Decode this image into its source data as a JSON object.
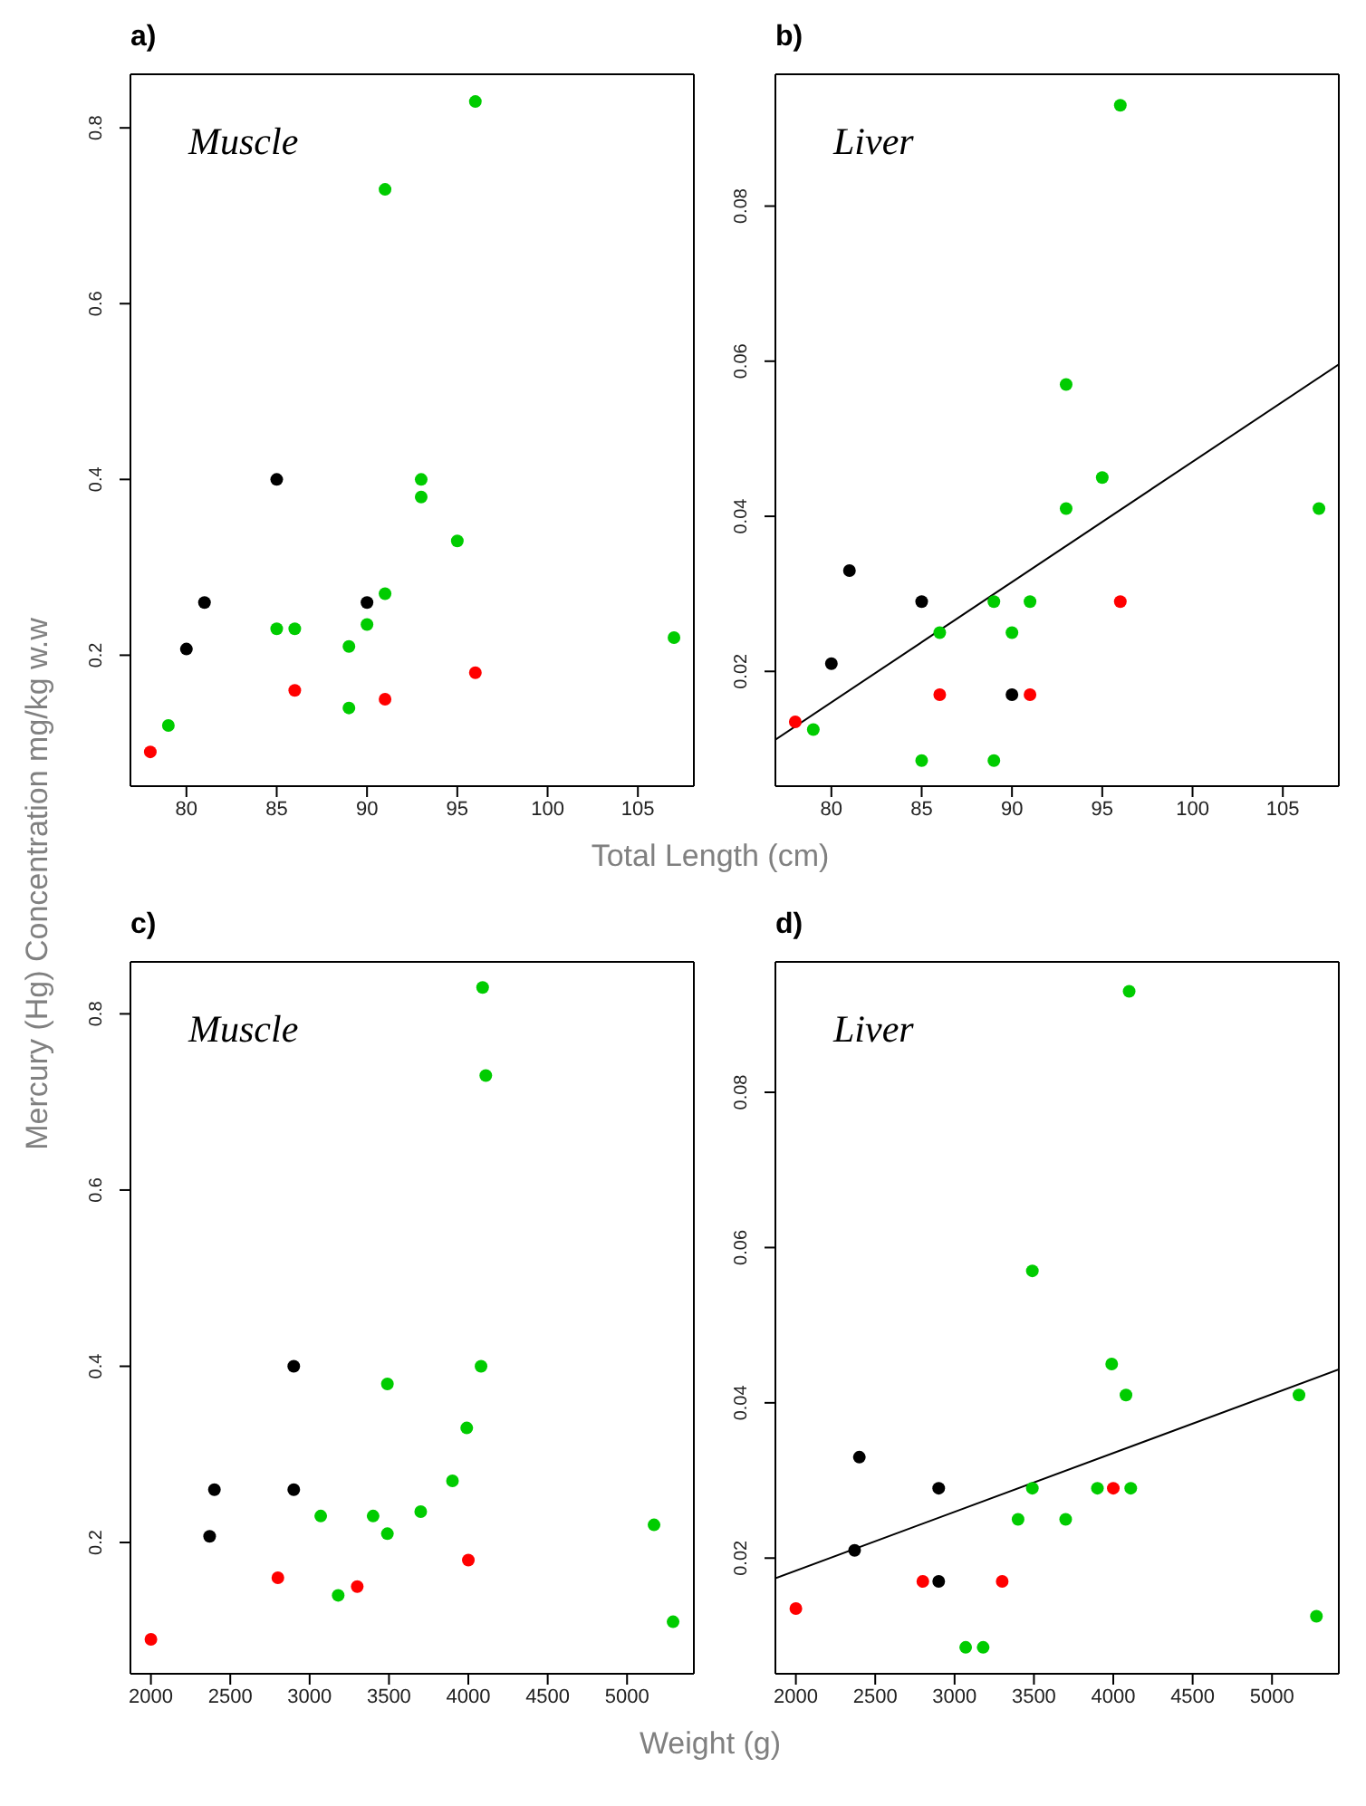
{
  "chart_data": [
    {
      "type": "scatter",
      "title": "a)",
      "annotations": [
        "Muscle"
      ],
      "xlabel": "Total Length (cm)",
      "ylabel": "Mercury (Hg) Concentration mg/kg w.w",
      "marker": "circle",
      "xlim": [
        76.9,
        108.1
      ],
      "ylim": [
        0.051,
        0.861
      ],
      "xticks": [
        80,
        85,
        90,
        95,
        100,
        105
      ],
      "yticks": [
        0.2,
        0.4,
        0.6,
        0.8
      ],
      "series": [
        {
          "color": "#000000",
          "x": [
            80,
            81,
            85,
            90
          ],
          "values": [
            0.207,
            0.26,
            0.4,
            0.26
          ]
        },
        {
          "color": "#ff0000",
          "x": [
            78,
            86,
            91,
            96
          ],
          "values": [
            0.09,
            0.16,
            0.15,
            0.18
          ]
        },
        {
          "color": "#00cc00",
          "x": [
            79,
            85,
            86,
            89,
            89,
            90,
            91,
            91,
            93,
            93,
            95,
            96,
            107
          ],
          "values": [
            0.12,
            0.23,
            0.23,
            0.21,
            0.14,
            0.235,
            0.27,
            0.73,
            0.4,
            0.38,
            0.33,
            0.83,
            0.22
          ]
        }
      ]
    },
    {
      "type": "scatter",
      "title": "b)",
      "annotations": [
        "Liver"
      ],
      "marker": "circle",
      "xlim": [
        76.9,
        108.1
      ],
      "ylim": [
        0.0052,
        0.097
      ],
      "xticks": [
        80,
        85,
        90,
        95,
        100,
        105
      ],
      "yticks": [
        0.02,
        0.04,
        0.06,
        0.08
      ],
      "series": [
        {
          "color": "#000000",
          "x": [
            80,
            81,
            85,
            90
          ],
          "values": [
            0.021,
            0.033,
            0.029,
            0.017
          ]
        },
        {
          "color": "#ff0000",
          "x": [
            78,
            86,
            91,
            96
          ],
          "values": [
            0.0135,
            0.017,
            0.017,
            0.029
          ]
        },
        {
          "color": "#00cc00",
          "x": [
            79,
            85,
            86,
            89,
            89,
            90,
            91,
            93,
            93,
            95,
            96,
            107
          ],
          "values": [
            0.0125,
            0.0085,
            0.025,
            0.029,
            0.0085,
            0.025,
            0.029,
            0.057,
            0.041,
            0.045,
            0.093,
            0.041
          ]
        },
        {
          "type": "line",
          "marker": "none",
          "color": "#000000",
          "line_style": "solid",
          "x": [
            76.9,
            108.1
          ],
          "values": [
            0.0112,
            0.0596
          ]
        }
      ]
    },
    {
      "type": "scatter",
      "title": "c)",
      "annotations": [
        "Muscle"
      ],
      "xlabel": "Weight (g)",
      "marker": "circle",
      "xlim": [
        1871,
        5421
      ],
      "ylim": [
        0.051,
        0.859
      ],
      "xticks": [
        2000,
        2500,
        3000,
        3500,
        4000,
        4500,
        5000
      ],
      "yticks": [
        0.2,
        0.4,
        0.6,
        0.8
      ],
      "series": [
        {
          "color": "#000000",
          "x": [
            2370,
            2400,
            2900,
            2900
          ],
          "values": [
            0.207,
            0.26,
            0.4,
            0.26
          ]
        },
        {
          "color": "#ff0000",
          "x": [
            2000,
            2800,
            3300,
            4000
          ],
          "values": [
            0.09,
            0.16,
            0.15,
            0.18
          ]
        },
        {
          "color": "#00cc00",
          "x": [
            3070,
            3180,
            3400,
            3490,
            3490,
            3700,
            3900,
            3990,
            4080,
            4090,
            4110,
            5170,
            5290
          ],
          "values": [
            0.23,
            0.14,
            0.23,
            0.21,
            0.38,
            0.235,
            0.27,
            0.33,
            0.4,
            0.83,
            0.73,
            0.22,
            0.11
          ]
        }
      ]
    },
    {
      "type": "scatter",
      "title": "d)",
      "annotations": [
        "Liver"
      ],
      "marker": "circle",
      "xlim": [
        1871,
        5421
      ],
      "ylim": [
        0.0051,
        0.0968
      ],
      "xticks": [
        2000,
        2500,
        3000,
        3500,
        4000,
        4500,
        5000
      ],
      "yticks": [
        0.02,
        0.04,
        0.06,
        0.08
      ],
      "series": [
        {
          "color": "#000000",
          "x": [
            2370,
            2400,
            2900,
            2900
          ],
          "values": [
            0.021,
            0.033,
            0.029,
            0.017
          ]
        },
        {
          "color": "#ff0000",
          "x": [
            2000,
            2800,
            3300,
            4000
          ],
          "values": [
            0.0135,
            0.017,
            0.017,
            0.029
          ]
        },
        {
          "color": "#00cc00",
          "x": [
            3070,
            3180,
            3400,
            3490,
            3490,
            3700,
            3900,
            3990,
            4080,
            4100,
            4110,
            5170,
            5280
          ],
          "values": [
            0.0085,
            0.0085,
            0.025,
            0.057,
            0.029,
            0.025,
            0.029,
            0.045,
            0.041,
            0.093,
            0.029,
            0.041,
            0.0125
          ]
        },
        {
          "type": "line",
          "marker": "none",
          "color": "#000000",
          "line_style": "solid",
          "x": [
            1871,
            5421
          ],
          "values": [
            0.0174,
            0.0443
          ]
        }
      ]
    }
  ]
}
